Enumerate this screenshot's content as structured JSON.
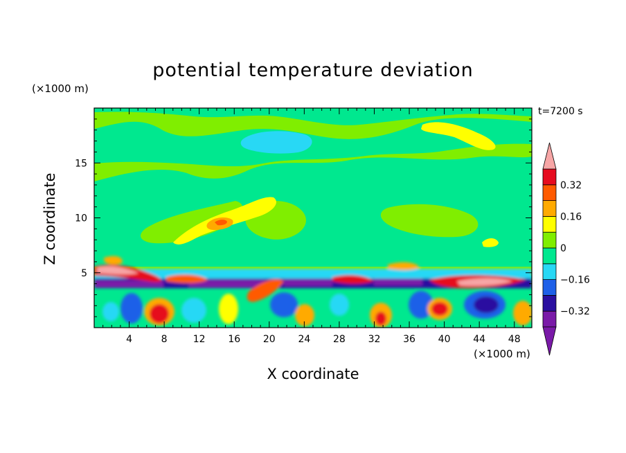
{
  "chart_data": {
    "type": "heatmap",
    "title": "potential temperature deviation",
    "xlabel": "X coordinate",
    "ylabel": "Z coordinate",
    "x_unit": "(×1000 m)",
    "y_unit": "(×1000 m)",
    "time_label": "t=7200 s",
    "xlim": [
      0,
      50
    ],
    "ylim": [
      0,
      20
    ],
    "xticks": [
      4,
      8,
      12,
      16,
      20,
      24,
      28,
      32,
      36,
      40,
      44,
      48
    ],
    "yticks": [
      5,
      10,
      15
    ],
    "colorbar": {
      "levels": [
        -0.4,
        -0.32,
        -0.24,
        -0.16,
        -0.08,
        0,
        0.08,
        0.16,
        0.24,
        0.32,
        0.4
      ],
      "labels": [
        {
          "value": 0.32,
          "text": "0.32"
        },
        {
          "value": 0.16,
          "text": "0.16"
        },
        {
          "value": 0,
          "text": "0"
        },
        {
          "value": -0.16,
          "text": "−0.16"
        },
        {
          "value": -0.32,
          "text": "−0.32"
        }
      ],
      "colors": [
        "#7a1aa8",
        "#2a0fa0",
        "#1e60e8",
        "#28d8f5",
        "#00e88f",
        "#80ee00",
        "#ffff00",
        "#ffaa00",
        "#ff5a00",
        "#e60b1f",
        "#f7a6a6"
      ],
      "extend": "both"
    }
  }
}
